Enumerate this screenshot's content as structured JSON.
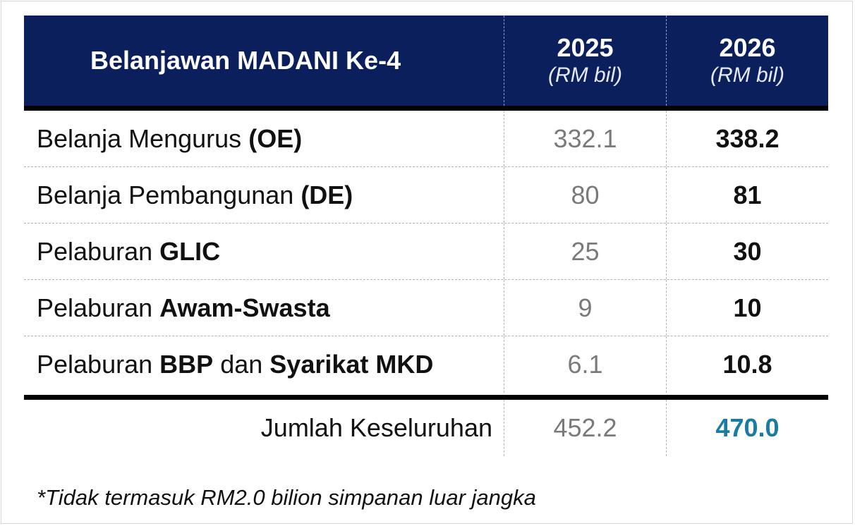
{
  "header": {
    "title": "Belanjawan MADANI Ke-4",
    "col_2025_year": "2025",
    "col_2025_unit": "(RM bil)",
    "col_2026_year": "2026",
    "col_2026_unit": "(RM bil)"
  },
  "rows": [
    {
      "label_plain": "Belanja Mengurus ",
      "label_bold": "(OE)",
      "v2025": "332.1",
      "v2026": "338.2"
    },
    {
      "label_plain": "Belanja Pembangunan ",
      "label_bold": "(DE)",
      "v2025": "80",
      "v2026": "81"
    },
    {
      "label_plain": "Pelaburan ",
      "label_bold": "GLIC",
      "v2025": "25",
      "v2026": "30"
    },
    {
      "label_plain": "Pelaburan ",
      "label_bold": "Awam-Swasta",
      "v2025": "9",
      "v2026": "10"
    },
    {
      "label_plain": "Pelaburan ",
      "label_bold": "BBP",
      "label_mid": " dan ",
      "label_bold2": "Syarikat MKD",
      "v2025": "6.1",
      "v2026": "10.8"
    }
  ],
  "total": {
    "label": "Jumlah Keseluruhan",
    "v2025": "452.2",
    "v2026": "470.0"
  },
  "footnote": "*Tidak termasuk RM2.0 bilion simpanan luar jangka",
  "colors": {
    "header_bg": "#0b1f5c",
    "total_2026": "#1a7ca3",
    "muted": "#7a7a7a"
  }
}
